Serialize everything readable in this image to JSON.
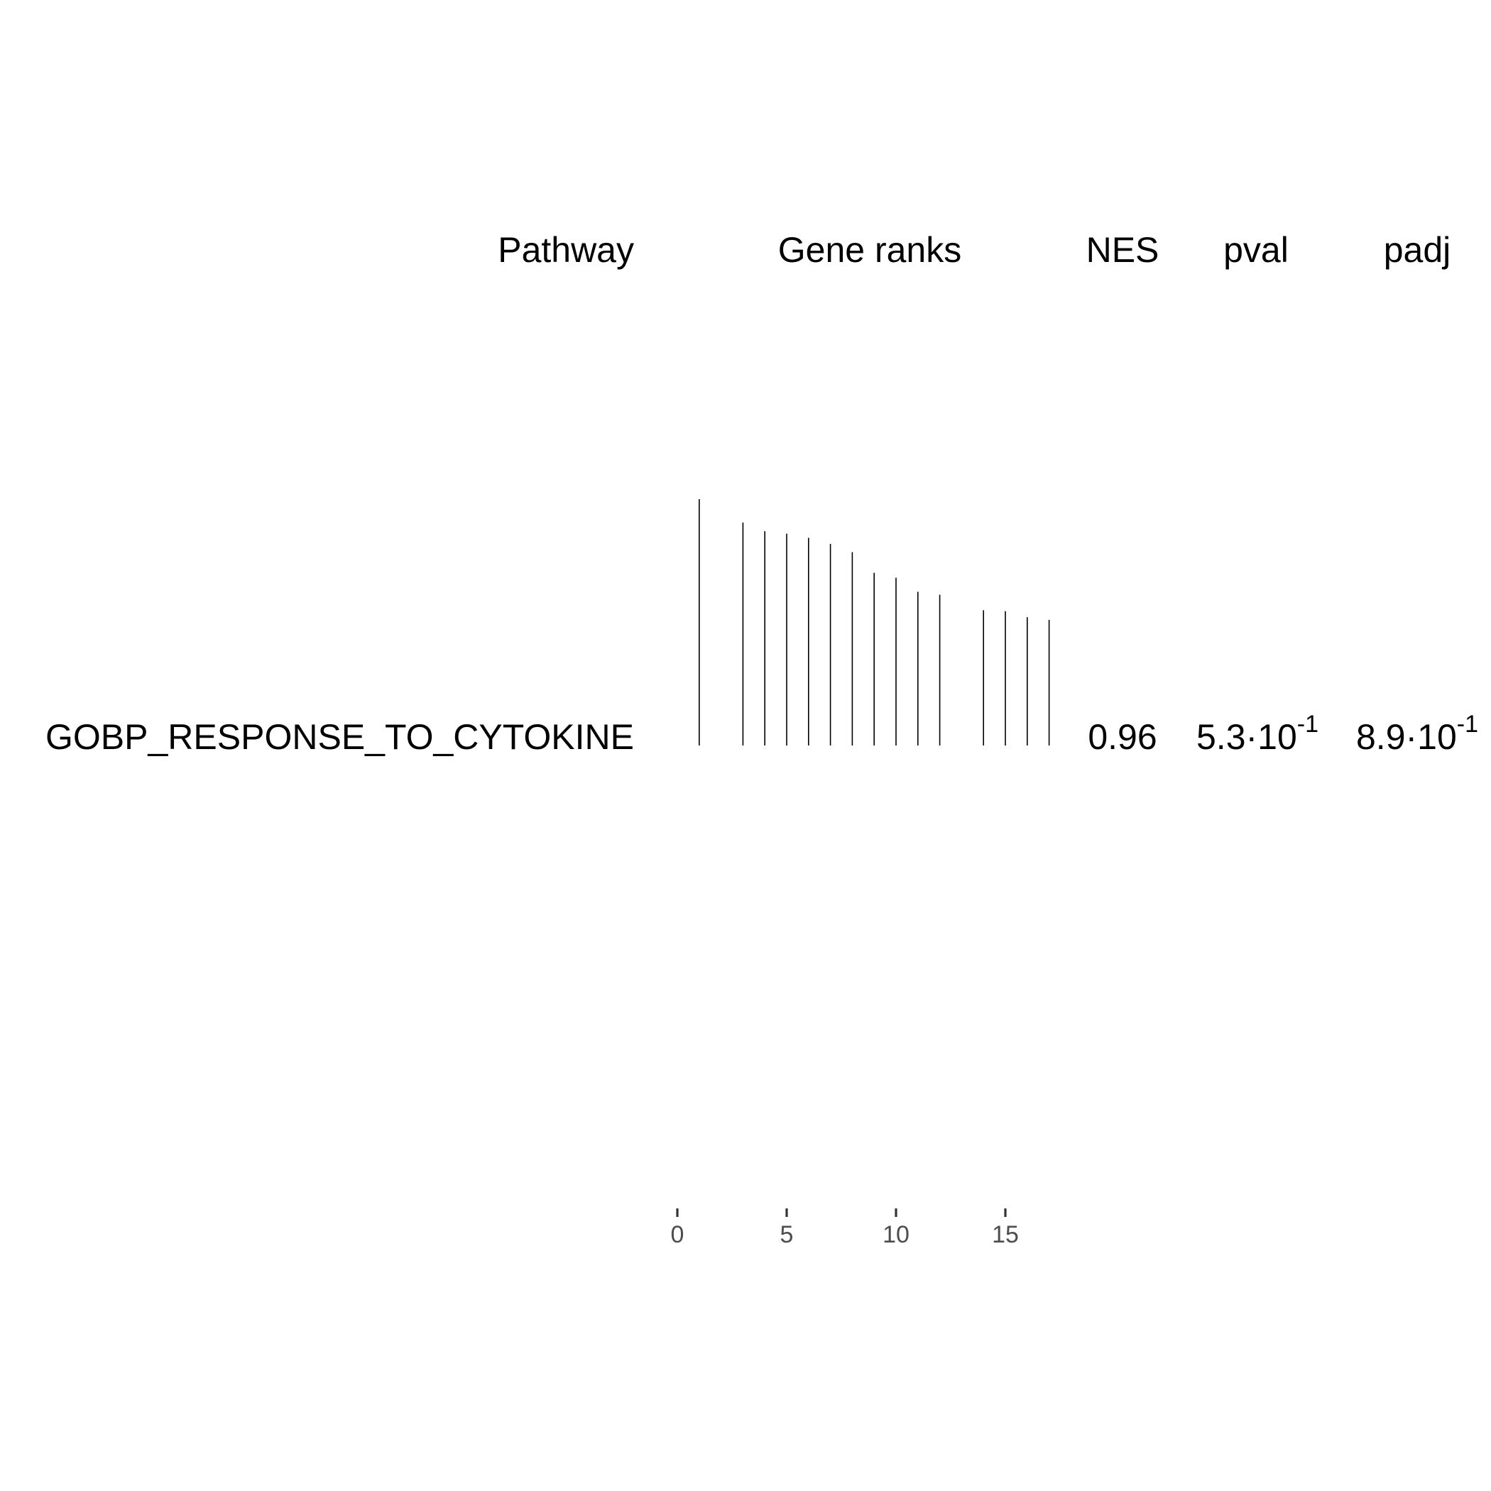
{
  "chart_data": {
    "type": "table",
    "columns": {
      "pathway": "Pathway",
      "gene_ranks": "Gene ranks",
      "nes": "NES",
      "pval": "pval",
      "padj": "padj"
    },
    "rows": [
      {
        "pathway": "GOBP_RESPONSE_TO_CYTOKINE",
        "nes": "0.96",
        "pval": {
          "mantissa": "5.3",
          "base": "10",
          "exponent": "-1"
        },
        "padj": {
          "mantissa": "8.9",
          "base": "10",
          "exponent": "-1"
        },
        "gene_ranks": [
          {
            "rank": 1,
            "stat": 1.0
          },
          {
            "rank": 3,
            "stat": 0.905
          },
          {
            "rank": 4,
            "stat": 0.87
          },
          {
            "rank": 5,
            "stat": 0.86
          },
          {
            "rank": 6,
            "stat": 0.843
          },
          {
            "rank": 7,
            "stat": 0.818
          },
          {
            "rank": 8,
            "stat": 0.785
          },
          {
            "rank": 9,
            "stat": 0.701
          },
          {
            "rank": 10,
            "stat": 0.681
          },
          {
            "rank": 11,
            "stat": 0.624
          },
          {
            "rank": 12,
            "stat": 0.612
          },
          {
            "rank": 14,
            "stat": 0.549
          },
          {
            "rank": 15,
            "stat": 0.545
          },
          {
            "rank": 16,
            "stat": 0.521
          },
          {
            "rank": 17,
            "stat": 0.51
          }
        ]
      }
    ],
    "x_axis": {
      "ticks": [
        0,
        5,
        10,
        15
      ],
      "xlim": [
        0,
        18
      ],
      "label": ""
    },
    "grid": false,
    "legend": "none"
  }
}
